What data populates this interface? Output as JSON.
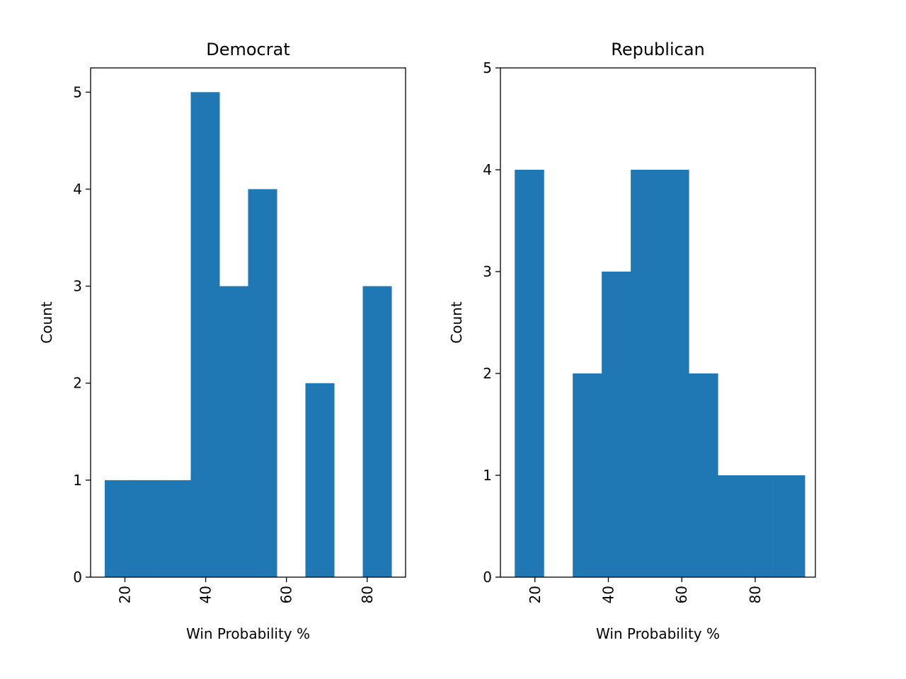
{
  "chart_data": [
    {
      "type": "bar",
      "title": "Democrat",
      "xlabel": "Win Probability %",
      "ylabel": "Count",
      "xlim": [
        11.5,
        89.5
      ],
      "ylim": [
        0,
        5.25
      ],
      "xticks": [
        "20",
        "40",
        "60",
        "80"
      ],
      "xtick_values": [
        20,
        40,
        60,
        80
      ],
      "yticks": [
        "0",
        "1",
        "2",
        "3",
        "4",
        "5"
      ],
      "ytick_values": [
        0,
        1,
        2,
        3,
        4,
        5
      ],
      "bin_edges": [
        15,
        22.1,
        29.2,
        36.3,
        43.4,
        50.5,
        57.6,
        64.7,
        71.8,
        78.9,
        86
      ],
      "counts": [
        1,
        1,
        1,
        5,
        3,
        4,
        0,
        2,
        0,
        3
      ],
      "color": "#1f77b4"
    },
    {
      "type": "bar",
      "title": "Republican",
      "xlabel": "Win Probability %",
      "ylabel": "Count",
      "xlim": [
        10.6,
        96.4
      ],
      "ylim": [
        0,
        5
      ],
      "xticks": [
        "20",
        "40",
        "60",
        "80"
      ],
      "xtick_values": [
        20,
        40,
        60,
        80
      ],
      "yticks": [
        "0",
        "1",
        "2",
        "3",
        "4",
        "5"
      ],
      "ytick_values": [
        0,
        1,
        2,
        3,
        4,
        5
      ],
      "bin_edges": [
        14.5,
        22.4,
        30.3,
        38.2,
        46.1,
        54.0,
        61.9,
        69.8,
        77.7,
        85.6,
        93.5
      ],
      "counts": [
        4,
        0,
        2,
        3,
        4,
        4,
        2,
        1,
        1,
        1
      ],
      "color": "#1f77b4"
    }
  ]
}
